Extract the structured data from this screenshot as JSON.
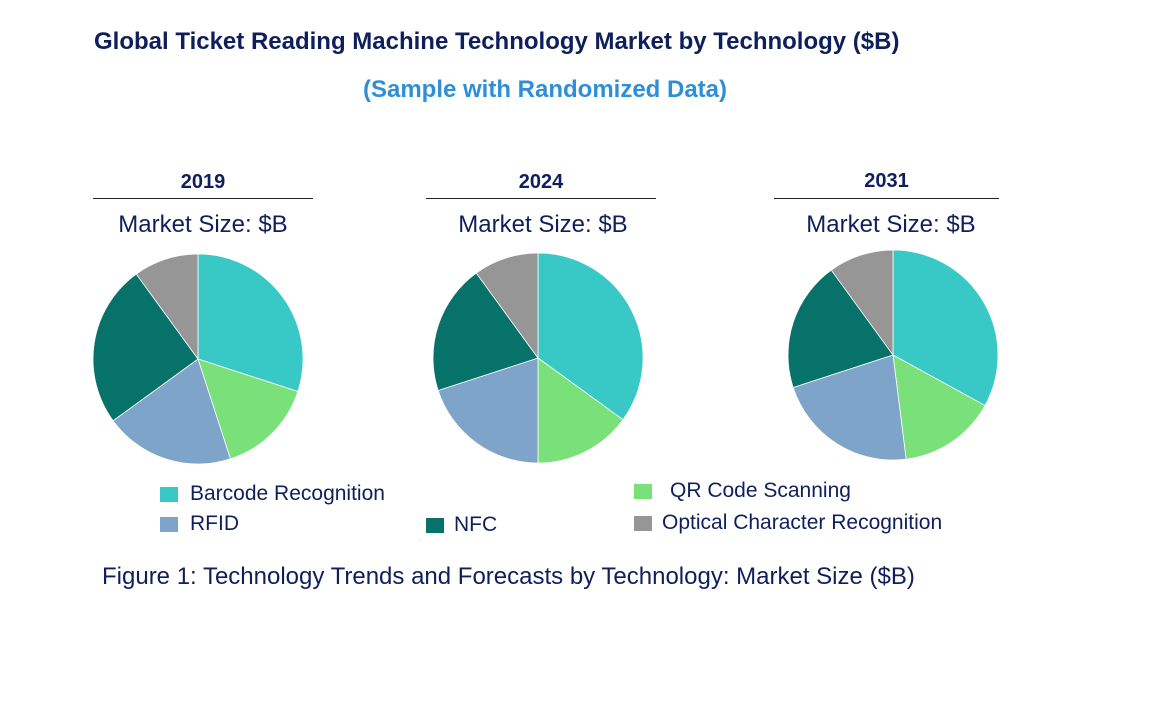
{
  "title": "Global Ticket Reading Machine Technology Market by Technology ($B)",
  "subtitle": "(Sample with Randomized Data)",
  "caption": "Figure 1: Technology Trends and Forecasts by Technology: Market Size ($B)",
  "chart_data": [
    {
      "type": "pie",
      "title": "2019",
      "subtitle": "Market Size: $B",
      "categories": [
        "Barcode Recognition",
        "QR Code Scanning",
        "RFID",
        "NFC",
        "Optical Character Recognition"
      ],
      "values": [
        30,
        15,
        20,
        25,
        10
      ]
    },
    {
      "type": "pie",
      "title": "2024",
      "subtitle": "Market Size: $B",
      "categories": [
        "Barcode Recognition",
        "QR Code Scanning",
        "RFID",
        "NFC",
        "Optical Character Recognition"
      ],
      "values": [
        35,
        15,
        20,
        20,
        10
      ]
    },
    {
      "type": "pie",
      "title": "2031",
      "subtitle": "Market Size: $B",
      "categories": [
        "Barcode Recognition",
        "QR Code Scanning",
        "RFID",
        "NFC",
        "Optical Character Recognition"
      ],
      "values": [
        33,
        15,
        22,
        20,
        10
      ]
    }
  ],
  "legend": [
    {
      "label": "Barcode Recognition",
      "color": "#38c9c6"
    },
    {
      "label": "QR Code Scanning",
      "color": "#7ae07a"
    },
    {
      "label": "RFID",
      "color": "#7fa4c9"
    },
    {
      "label": "NFC",
      "color": "#06726a"
    },
    {
      "label": "Optical Character Recognition",
      "color": "#969696"
    }
  ]
}
